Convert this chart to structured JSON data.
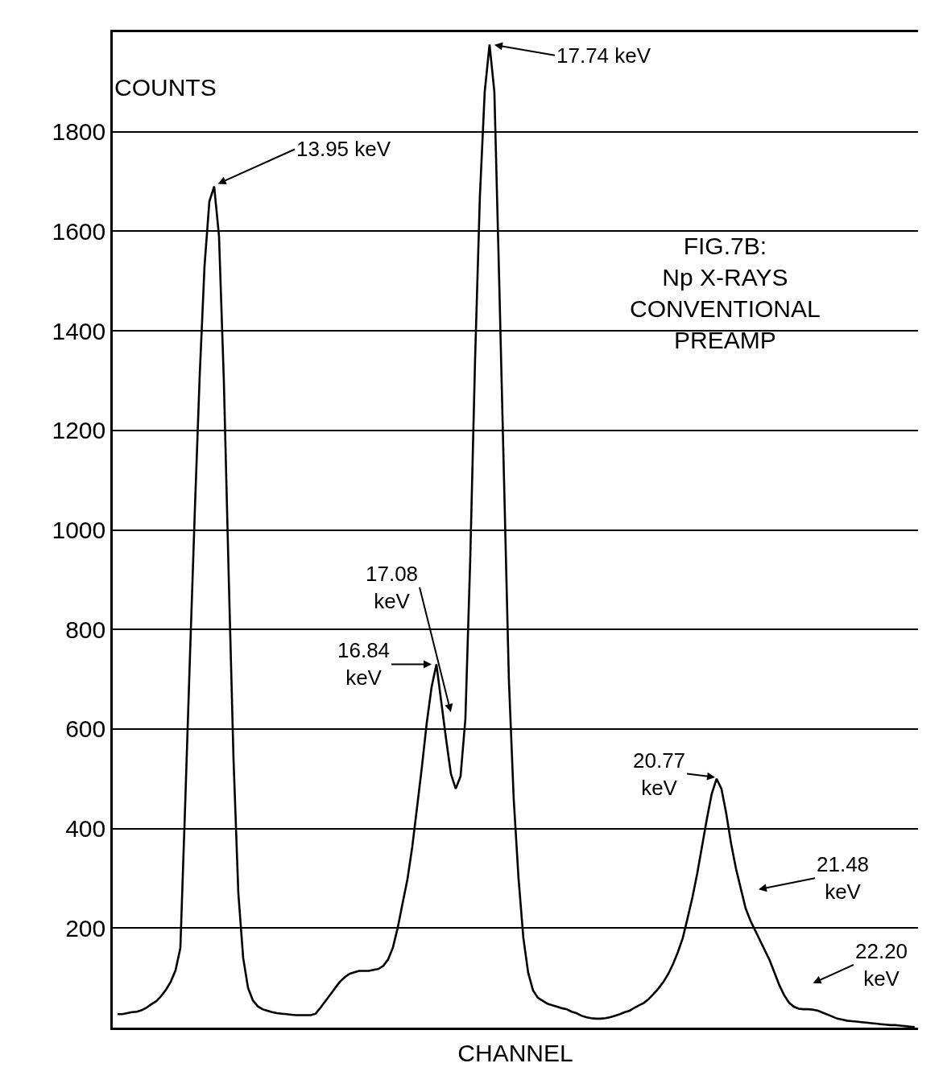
{
  "chart_data": {
    "type": "line",
    "title": "FIG.7B:\nNp X-RAYS\nCONVENTIONAL\nPREAMP",
    "xlabel": "CHANNEL",
    "ylabel": "COUNTS",
    "categories": [
      null,
      null,
      null,
      null,
      null,
      null,
      null,
      null,
      null,
      null,
      null,
      null,
      null,
      null,
      null,
      null,
      null,
      null,
      null,
      null,
      null,
      null,
      null,
      null,
      null,
      null,
      null,
      null,
      null,
      null,
      null,
      null,
      null,
      null,
      null,
      null,
      null,
      null,
      null,
      null,
      null,
      null,
      null,
      null,
      null,
      null,
      null,
      null,
      null,
      null,
      null,
      null,
      null,
      null,
      null,
      null,
      null,
      null,
      null,
      null,
      null,
      null,
      null,
      null,
      null,
      null,
      null,
      null,
      null,
      null,
      null,
      null,
      null,
      null,
      null,
      null,
      null,
      null,
      null,
      null,
      null,
      null,
      null,
      null,
      null,
      null,
      null,
      null,
      null,
      null,
      null,
      null,
      null,
      null,
      null,
      null,
      null,
      null,
      null,
      null,
      null,
      null,
      null,
      null,
      null,
      null,
      null,
      null,
      null,
      null,
      null,
      null,
      null,
      null,
      null,
      null,
      null,
      null,
      null,
      null,
      null,
      null,
      null,
      null,
      null,
      null,
      null,
      null,
      null,
      null,
      null,
      null,
      null,
      null,
      null,
      null,
      null,
      null,
      null,
      null,
      null,
      null,
      null,
      null,
      null,
      null,
      null,
      null,
      null,
      null,
      null,
      null,
      null,
      null,
      null,
      null,
      null,
      null,
      null,
      null,
      null,
      null,
      null,
      null,
      null,
      null
    ],
    "series": [
      {
        "color": "#000000",
        "values": [
          27,
          27,
          29,
          31,
          32,
          35,
          40,
          47,
          53,
          63,
          76,
          92,
          115,
          160,
          450,
          750,
          1040,
          1310,
          1530,
          1660,
          1690,
          1590,
          1300,
          910,
          540,
          270,
          140,
          80,
          55,
          43,
          37,
          34,
          31,
          29,
          28,
          27,
          26,
          25,
          25,
          25,
          25,
          28,
          40,
          53,
          66,
          79,
          92,
          101,
          108,
          111,
          114,
          114,
          114,
          116,
          118,
          124,
          137,
          161,
          201,
          250,
          298,
          363,
          443,
          524,
          612,
          684,
          730,
          655,
          580,
          510,
          480,
          505,
          620,
          940,
          1340,
          1670,
          1880,
          1975,
          1880,
          1500,
          1100,
          700,
          460,
          300,
          180,
          110,
          75,
          60,
          54,
          48,
          45,
          42,
          39,
          37,
          32,
          29,
          24,
          21,
          19,
          18,
          18,
          19,
          21,
          24,
          27,
          31,
          34,
          40,
          45,
          50,
          58,
          68,
          79,
          92,
          108,
          128,
          152,
          180,
          220,
          262,
          310,
          365,
          420,
          470,
          500,
          480,
          430,
          370,
          320,
          280,
          240,
          215,
          195,
          175,
          155,
          135,
          110,
          85,
          65,
          50,
          42,
          38,
          37,
          37,
          36,
          34,
          30,
          26,
          22,
          18,
          16,
          14,
          13,
          12,
          11,
          10,
          9,
          8,
          7,
          6,
          5,
          5,
          4,
          3,
          2,
          1
        ]
      }
    ],
    "ylim": [
      0,
      2000
    ],
    "yticks": [
      200,
      400,
      600,
      800,
      1000,
      1200,
      1400,
      1600,
      1800,
      {
        "value": 2000,
        "label": null
      }
    ],
    "grid": "y",
    "marker": "none",
    "line_style": "solid",
    "annotations": [
      "13.95 keV",
      "17.74 keV",
      "17.08\nkeV",
      "16.84\nkeV",
      "20.77\nkeV",
      "21.48\nkeV",
      "22.20\nkeV"
    ]
  }
}
